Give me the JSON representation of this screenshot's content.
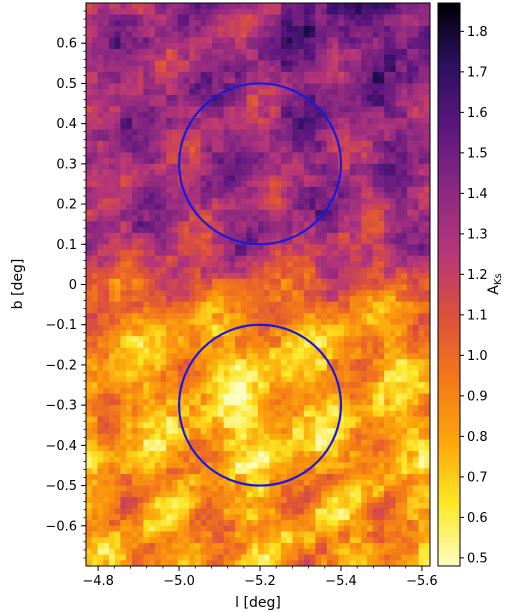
{
  "chart_data": {
    "type": "heatmap",
    "xlabel": "l [deg]",
    "ylabel": "b [deg]",
    "colorbar_label": "A_Ks",
    "xlim": [
      -4.77,
      -5.62
    ],
    "ylim": [
      -0.7,
      0.7
    ],
    "x_ticks": [
      -4.8,
      -5.0,
      -5.2,
      -5.4,
      -5.6
    ],
    "x_tick_labels": [
      "−4.8",
      "−5.0",
      "−5.2",
      "−5.4",
      "−5.6"
    ],
    "y_ticks": [
      0.6,
      0.5,
      0.4,
      0.3,
      0.2,
      0.1,
      0,
      -0.1,
      -0.2,
      -0.3,
      -0.4,
      -0.5,
      -0.6
    ],
    "y_tick_labels": [
      "0.6",
      "0.5",
      "0.4",
      "0.3",
      "0.2",
      "0.1",
      "0",
      "−0.1",
      "−0.2",
      "−0.3",
      "−0.4",
      "−0.5",
      "−0.6"
    ],
    "colorbar_range": [
      0.48,
      1.87
    ],
    "colorbar_ticks": [
      1.8,
      1.7,
      1.6,
      1.5,
      1.4,
      1.3,
      1.2,
      1.1,
      1.0,
      0.9,
      0.8,
      0.7,
      0.6,
      0.5
    ],
    "colorbar_tick_labels": [
      "1.8",
      "1.7",
      "1.6",
      "1.5",
      "1.4",
      "1.3",
      "1.2",
      "1.1",
      "1.0",
      "0.9",
      "0.8",
      "0.7",
      "0.6",
      "0.5"
    ],
    "colormap": [
      "#fcfdbf",
      "#fde725",
      "#fca50a",
      "#f37819",
      "#dd513a",
      "#b73779",
      "#8c2981",
      "#5d177f",
      "#2c1160",
      "#000004"
    ],
    "colormap_name": "inferno_r",
    "circles": [
      {
        "center_l": -5.2,
        "center_b": 0.3,
        "radius_deg": 0.2,
        "color": "#1a1adb"
      },
      {
        "center_l": -5.2,
        "center_b": -0.3,
        "radius_deg": 0.2,
        "color": "#1a1adb"
      }
    ],
    "extinction_pattern": {
      "upper_half_b_gt_0": "purple/magenta, A_Ks ~1.1-1.6, darkest near top right",
      "lower_half_b_lt_0": "orange/yellow, A_Ks ~0.6-1.0, lowest near center of lower circle"
    }
  }
}
